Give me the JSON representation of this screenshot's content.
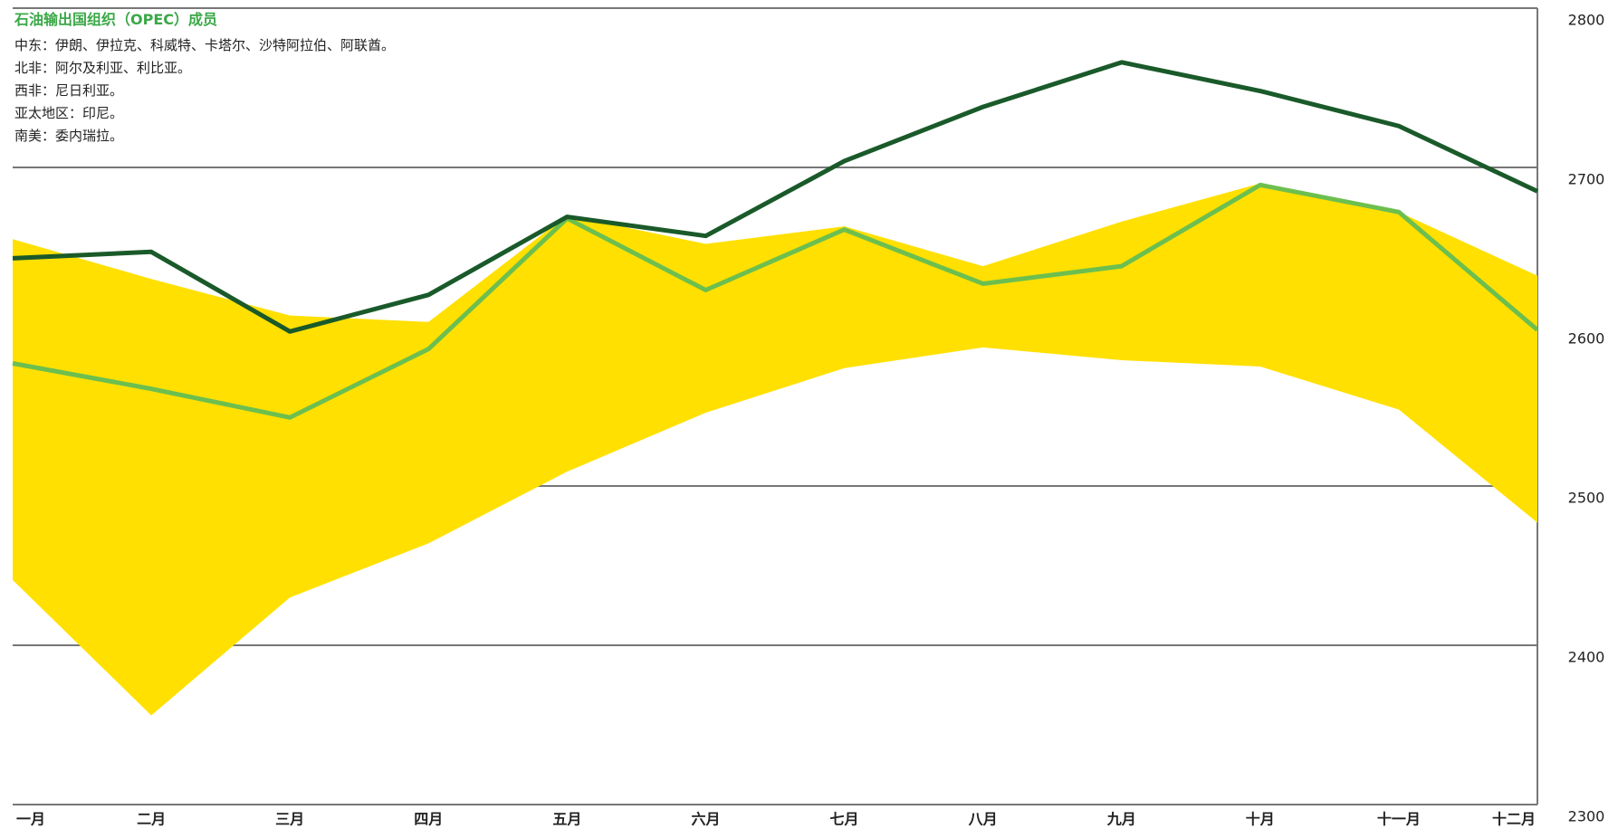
{
  "chart_data": {
    "type": "line",
    "annotations": {
      "title": "石油输出国组织（OPEC）成员",
      "lines": [
        "中东：伊朗、伊拉克、科威特、卡塔尔、沙特阿拉伯、阿联酋。",
        "北非：阿尔及利亚、利比亚。",
        "西非：尼日利亚。",
        "亚太地区：印尼。",
        "南美：委内瑞拉。"
      ]
    },
    "categories": [
      "一月",
      "二月",
      "三月",
      "四月",
      "五月",
      "六月",
      "七月",
      "八月",
      "九月",
      "十月",
      "十一月",
      "十二月"
    ],
    "band": {
      "color": "#ffe000",
      "low": [
        2441,
        2356,
        2430,
        2464,
        2509,
        2546,
        2574,
        2587,
        2579,
        2575,
        2548,
        2477
      ],
      "high": [
        2655,
        2630,
        2607,
        2603,
        2670,
        2652,
        2663,
        2638,
        2666,
        2690,
        2672,
        2632
      ]
    },
    "series": [
      {
        "color": "#6cbf4f",
        "values": [
          2577,
          2561,
          2543,
          2586,
          2668,
          2623,
          2661,
          2627,
          2638,
          2689,
          2672,
          2598
        ]
      },
      {
        "color": "#1a5a2a",
        "values": [
          2643,
          2647,
          2597,
          2620,
          2669,
          2657,
          2704,
          2738,
          2766,
          2748,
          2726,
          2685
        ]
      }
    ],
    "ylim": [
      2300,
      2800
    ],
    "yticks": [
      2300,
      2400,
      2500,
      2600,
      2700,
      2800
    ],
    "grid": true
  }
}
